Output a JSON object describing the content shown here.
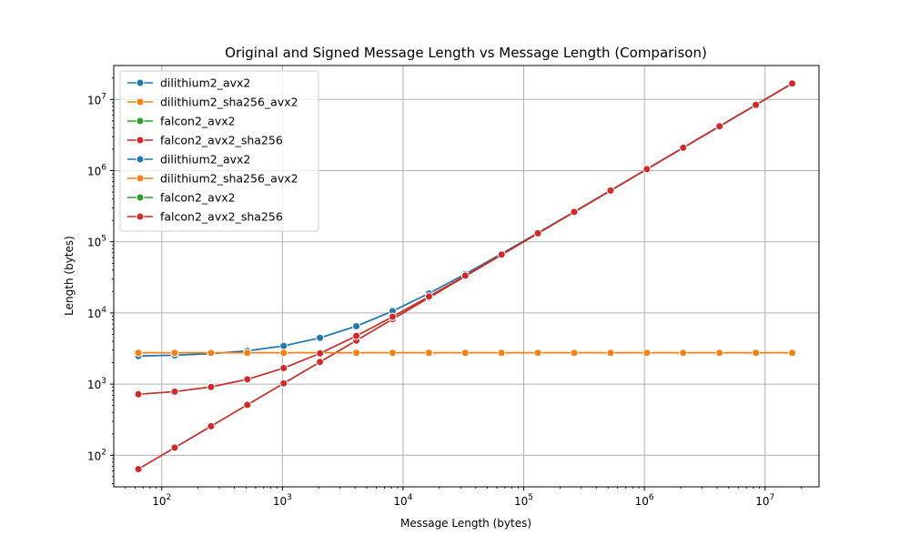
{
  "chart_data": {
    "type": "line",
    "title": "Original and Signed Message Length vs Message Length (Comparison)",
    "xlabel": "Message Length (bytes)",
    "ylabel": "Length (bytes)",
    "xscale": "log",
    "yscale": "log",
    "xlim": [
      40,
      28000000
    ],
    "ylim": [
      36,
      30000000
    ],
    "grid": true,
    "legend_position": "top-left",
    "x_ticks": [
      {
        "value": 100,
        "base": "10",
        "exp": "2"
      },
      {
        "value": 1000,
        "base": "10",
        "exp": "3"
      },
      {
        "value": 10000,
        "base": "10",
        "exp": "4"
      },
      {
        "value": 100000,
        "base": "10",
        "exp": "5"
      },
      {
        "value": 1000000,
        "base": "10",
        "exp": "6"
      },
      {
        "value": 10000000,
        "base": "10",
        "exp": "7"
      }
    ],
    "y_ticks": [
      {
        "value": 100,
        "base": "10",
        "exp": "2"
      },
      {
        "value": 1000,
        "base": "10",
        "exp": "3"
      },
      {
        "value": 10000,
        "base": "10",
        "exp": "4"
      },
      {
        "value": 100000,
        "base": "10",
        "exp": "5"
      },
      {
        "value": 1000000,
        "base": "10",
        "exp": "6"
      },
      {
        "value": 10000000,
        "base": "10",
        "exp": "7"
      }
    ],
    "x": [
      64,
      128,
      256,
      512,
      1024,
      2048,
      4096,
      8192,
      16384,
      32768,
      65536,
      131072,
      262144,
      524288,
      1048576,
      2097152,
      4194304,
      8388608,
      16777216
    ],
    "series": [
      {
        "name": "dilithium2_avx2",
        "color": "#1f77b4",
        "values": [
          2484,
          2548,
          2676,
          2932,
          3444,
          4468,
          6516,
          10612,
          18804,
          35188,
          67956,
          133492,
          264564,
          526708,
          1050996,
          2099572,
          4196724,
          8391028,
          16779636
        ]
      },
      {
        "name": "dilithium2_sha256_avx2",
        "color": "#ff7f0e",
        "values": [
          2752,
          2752,
          2752,
          2752,
          2752,
          2752,
          2752,
          2752,
          2752,
          2752,
          2752,
          2752,
          2752,
          2752,
          2752,
          2752,
          2752,
          2752,
          2752
        ]
      },
      {
        "name": "falcon2_avx2",
        "color": "#2ca02c",
        "values": [
          64,
          128,
          256,
          512,
          1024,
          2048,
          4096,
          8192,
          16384,
          32768,
          65536,
          131072,
          262144,
          524288,
          1048576,
          2097152,
          4194304,
          8388608,
          16777216
        ]
      },
      {
        "name": "falcon2_avx2_sha256",
        "color": "#d62728",
        "values": [
          64,
          128,
          256,
          512,
          1024,
          2048,
          4096,
          8192,
          16384,
          32768,
          65536,
          131072,
          262144,
          524288,
          1048576,
          2097152,
          4194304,
          8388608,
          16777216
        ]
      },
      {
        "name": "dilithium2_avx2",
        "color": "#1f77b4",
        "values": [
          2484,
          2548,
          2676,
          2932,
          3444,
          4468,
          6516,
          10612,
          18804,
          35188,
          67956,
          133492,
          264564,
          526708,
          1050996,
          2099572,
          4196724,
          8391028,
          16779636
        ]
      },
      {
        "name": "dilithium2_sha256_avx2",
        "color": "#ff7f0e",
        "values": [
          2752,
          2752,
          2752,
          2752,
          2752,
          2752,
          2752,
          2752,
          2752,
          2752,
          2752,
          2752,
          2752,
          2752,
          2752,
          2752,
          2752,
          2752,
          2752
        ]
      },
      {
        "name": "falcon2_avx2",
        "color": "#2ca02c",
        "values": [
          720,
          784,
          912,
          1168,
          1680,
          2704,
          4752,
          8848,
          17040,
          33424,
          66192,
          131728,
          262800,
          524944,
          1049232,
          2097808,
          4194960,
          8389264,
          16777872
        ]
      },
      {
        "name": "falcon2_avx2_sha256",
        "color": "#d62728",
        "values": [
          720,
          784,
          912,
          1168,
          1680,
          2704,
          4752,
          8848,
          17040,
          33424,
          66192,
          131728,
          262800,
          524944,
          1049232,
          2097808,
          4194960,
          8389264,
          16777872
        ]
      }
    ]
  }
}
